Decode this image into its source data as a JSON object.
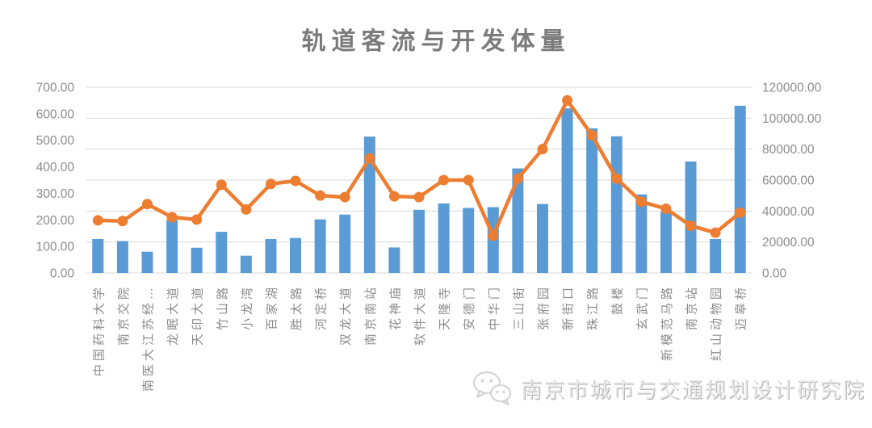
{
  "title": "轨道客流与开发体量",
  "watermark": {
    "icon": "wechat-icon",
    "text": "南京市城市与交通规划设计研究院"
  },
  "colors": {
    "bar": "#5B9BD5",
    "line": "#ED7D31",
    "gridline": "#D9D9D9",
    "axis_text": "#8C8C8C",
    "title_text": "#7B7B7B"
  },
  "chart_data": {
    "type": "bar",
    "subtype": "combo-bar-line-dual-axis",
    "title": "轨道客流与开发体量",
    "xlabel": "",
    "ylabel": "",
    "grid": true,
    "legend": "none",
    "categories": [
      "中国药科大学",
      "南京交院",
      "南医大江苏经…",
      "龙眠大道",
      "天印大道",
      "竹山路",
      "小龙湾",
      "百家湖",
      "胜太路",
      "河定桥",
      "双龙大道",
      "南京南站",
      "花神庙",
      "软件大道",
      "天隆寺",
      "安德门",
      "中华门",
      "三山街",
      "张府园",
      "新街口",
      "珠江路",
      "鼓楼",
      "玄武门",
      "新模范马路",
      "南京站",
      "红山动物园",
      "迈皋桥"
    ],
    "series": [
      {
        "id": "bars",
        "type": "bar",
        "axis": "left",
        "color": "#5B9BD5",
        "values": [
          128,
          120,
          80,
          200,
          95,
          155,
          65,
          128,
          132,
          202,
          220,
          514,
          96,
          238,
          262,
          245,
          248,
          394,
          260,
          620,
          545,
          515,
          296,
          230,
          420,
          128,
          630
        ]
      },
      {
        "id": "line",
        "type": "line",
        "axis": "right",
        "color": "#ED7D31",
        "values": [
          34000,
          33500,
          44500,
          36000,
          34500,
          57000,
          41000,
          57500,
          59500,
          50000,
          49000,
          74000,
          49500,
          49000,
          60000,
          60000,
          24000,
          61000,
          80000,
          111500,
          89000,
          61000,
          46000,
          41500,
          30500,
          26000,
          39000
        ]
      }
    ],
    "left_axis": {
      "min": 0,
      "max": 700,
      "tick_step": 100,
      "tick_labels": [
        "0.00",
        "100.00",
        "200.00",
        "300.00",
        "400.00",
        "500.00",
        "600.00",
        "700.00"
      ]
    },
    "right_axis": {
      "min": 0,
      "max": 120000,
      "tick_step": 20000,
      "tick_labels": [
        "0.00",
        "20000.00",
        "40000.00",
        "60000.00",
        "80000.00",
        "100000.00",
        "120000.00"
      ]
    }
  }
}
